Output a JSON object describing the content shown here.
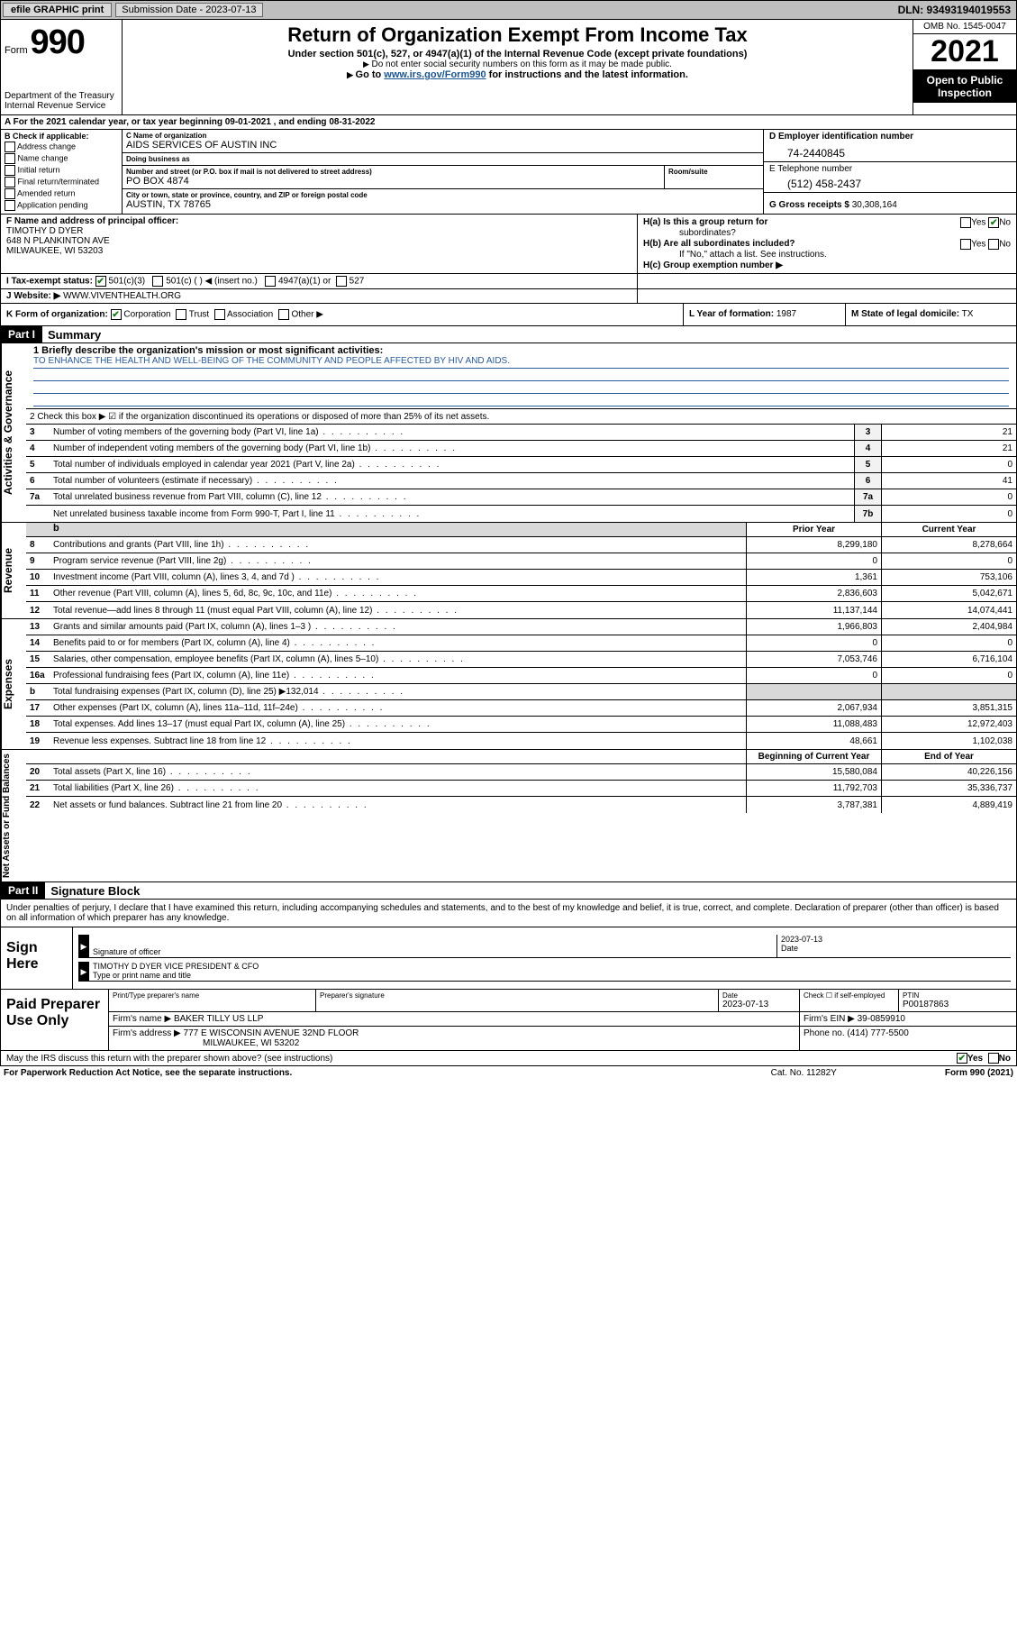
{
  "topbar": {
    "efile": "efile GRAPHIC print",
    "submission_label": "Submission Date - 2023-07-13",
    "dln": "DLN: 93493194019553"
  },
  "header": {
    "form_word": "Form",
    "form_no": "990",
    "dept": "Department of the Treasury",
    "irs": "Internal Revenue Service",
    "title": "Return of Organization Exempt From Income Tax",
    "sub1": "Under section 501(c), 527, or 4947(a)(1) of the Internal Revenue Code (except private foundations)",
    "sub2": "Do not enter social security numbers on this form as it may be made public.",
    "sub3_pre": "Go to ",
    "sub3_link": "www.irs.gov/Form990",
    "sub3_post": " for instructions and the latest information.",
    "omb": "OMB No. 1545-0047",
    "year": "2021",
    "open1": "Open to Public",
    "open2": "Inspection"
  },
  "rowA": "A  For the 2021 calendar year, or tax year beginning 09-01-2021   , and ending 08-31-2022",
  "B": {
    "label": "B Check if applicable:",
    "items": [
      "Address change",
      "Name change",
      "Initial return",
      "Final return/terminated",
      "Amended return",
      "Application pending"
    ]
  },
  "C": {
    "name_lbl": "C Name of organization",
    "name": "AIDS SERVICES OF AUSTIN INC",
    "dba_lbl": "Doing business as",
    "dba": "",
    "addr_lbl": "Number and street (or P.O. box if mail is not delivered to street address)",
    "room_lbl": "Room/suite",
    "addr": "PO BOX 4874",
    "city_lbl": "City or town, state or province, country, and ZIP or foreign postal code",
    "city": "AUSTIN, TX  78765"
  },
  "D": {
    "lbl": "D Employer identification number",
    "val": "74-2440845"
  },
  "E": {
    "lbl": "E Telephone number",
    "val": "(512) 458-2437"
  },
  "G": {
    "lbl": "G Gross receipts $",
    "val": "30,308,164"
  },
  "F": {
    "lbl": "F Name and address of principal officer:",
    "name": "TIMOTHY D DYER",
    "addr1": "648 N PLANKINTON AVE",
    "addr2": "MILWAUKEE, WI  53203"
  },
  "H": {
    "a": "H(a)  Is this a group return for",
    "a2": "subordinates?",
    "b": "H(b)  Are all subordinates included?",
    "bnote": "If \"No,\" attach a list. See instructions.",
    "c": "H(c)  Group exemption number ▶",
    "yes": "Yes",
    "no": "No"
  },
  "I": {
    "lbl": "I   Tax-exempt status:",
    "opts": [
      "501(c)(3)",
      "501(c) (  ) ◀ (insert no.)",
      "4947(a)(1) or",
      "527"
    ]
  },
  "J": {
    "lbl": "J   Website: ▶",
    "val": "WWW.VIVENTHEALTH.ORG"
  },
  "K": {
    "lbl": "K Form of organization:",
    "opts": [
      "Corporation",
      "Trust",
      "Association",
      "Other ▶"
    ]
  },
  "L": {
    "lbl": "L Year of formation:",
    "val": "1987"
  },
  "M": {
    "lbl": "M State of legal domicile:",
    "val": "TX"
  },
  "partI": {
    "hdr": "Part I",
    "title": "Summary"
  },
  "sides": {
    "gov": "Activities & Governance",
    "rev": "Revenue",
    "exp": "Expenses",
    "net": "Net Assets or Fund Balances"
  },
  "mission": {
    "q": "1   Briefly describe the organization's mission or most significant activities:",
    "text": "TO ENHANCE THE HEALTH AND WELL-BEING OF THE COMMUNITY AND PEOPLE AFFECTED BY HIV AND AIDS."
  },
  "line2": "2   Check this box ▶ ☑  if the organization discontinued its operations or disposed of more than 25% of its net assets.",
  "govlines": [
    {
      "n": "3",
      "d": "Number of voting members of the governing body (Part VI, line 1a)",
      "c": "3",
      "v": "21"
    },
    {
      "n": "4",
      "d": "Number of independent voting members of the governing body (Part VI, line 1b)",
      "c": "4",
      "v": "21"
    },
    {
      "n": "5",
      "d": "Total number of individuals employed in calendar year 2021 (Part V, line 2a)",
      "c": "5",
      "v": "0"
    },
    {
      "n": "6",
      "d": "Total number of volunteers (estimate if necessary)",
      "c": "6",
      "v": "41"
    },
    {
      "n": "7a",
      "d": "Total unrelated business revenue from Part VIII, column (C), line 12",
      "c": "7a",
      "v": "0"
    },
    {
      "n": "",
      "d": "Net unrelated business taxable income from Form 990-T, Part I, line 11",
      "c": "7b",
      "v": "0"
    }
  ],
  "colhdrs": {
    "prior": "Prior Year",
    "current": "Current Year",
    "boy": "Beginning of Current Year",
    "eoy": "End of Year"
  },
  "revlines": [
    {
      "n": "8",
      "d": "Contributions and grants (Part VIII, line 1h)",
      "p": "8,299,180",
      "c": "8,278,664"
    },
    {
      "n": "9",
      "d": "Program service revenue (Part VIII, line 2g)",
      "p": "0",
      "c": "0"
    },
    {
      "n": "10",
      "d": "Investment income (Part VIII, column (A), lines 3, 4, and 7d )",
      "p": "1,361",
      "c": "753,106"
    },
    {
      "n": "11",
      "d": "Other revenue (Part VIII, column (A), lines 5, 6d, 8c, 9c, 10c, and 11e)",
      "p": "2,836,603",
      "c": "5,042,671"
    },
    {
      "n": "12",
      "d": "Total revenue—add lines 8 through 11 (must equal Part VIII, column (A), line 12)",
      "p": "11,137,144",
      "c": "14,074,441"
    }
  ],
  "explines": [
    {
      "n": "13",
      "d": "Grants and similar amounts paid (Part IX, column (A), lines 1–3 )",
      "p": "1,966,803",
      "c": "2,404,984"
    },
    {
      "n": "14",
      "d": "Benefits paid to or for members (Part IX, column (A), line 4)",
      "p": "0",
      "c": "0"
    },
    {
      "n": "15",
      "d": "Salaries, other compensation, employee benefits (Part IX, column (A), lines 5–10)",
      "p": "7,053,746",
      "c": "6,716,104"
    },
    {
      "n": "16a",
      "d": "Professional fundraising fees (Part IX, column (A), line 11e)",
      "p": "0",
      "c": "0"
    },
    {
      "n": "b",
      "d": "Total fundraising expenses (Part IX, column (D), line 25) ▶132,014",
      "p": "",
      "c": "",
      "shade": true
    },
    {
      "n": "17",
      "d": "Other expenses (Part IX, column (A), lines 11a–11d, 11f–24e)",
      "p": "2,067,934",
      "c": "3,851,315"
    },
    {
      "n": "18",
      "d": "Total expenses. Add lines 13–17 (must equal Part IX, column (A), line 25)",
      "p": "11,088,483",
      "c": "12,972,403"
    },
    {
      "n": "19",
      "d": "Revenue less expenses. Subtract line 18 from line 12",
      "p": "48,661",
      "c": "1,102,038"
    }
  ],
  "netlines": [
    {
      "n": "20",
      "d": "Total assets (Part X, line 16)",
      "p": "15,580,084",
      "c": "40,226,156"
    },
    {
      "n": "21",
      "d": "Total liabilities (Part X, line 26)",
      "p": "11,792,703",
      "c": "35,336,737"
    },
    {
      "n": "22",
      "d": "Net assets or fund balances. Subtract line 21 from line 20",
      "p": "3,787,381",
      "c": "4,889,419"
    }
  ],
  "partII": {
    "hdr": "Part II",
    "title": "Signature Block"
  },
  "penalties": "Under penalties of perjury, I declare that I have examined this return, including accompanying schedules and statements, and to the best of my knowledge and belief, it is true, correct, and complete. Declaration of preparer (other than officer) is based on all information of which preparer has any knowledge.",
  "sign": {
    "lbl": "Sign Here",
    "sig_lbl": "Signature of officer",
    "date_lbl": "Date",
    "date": "2023-07-13",
    "name": "TIMOTHY D DYER  VICE PRESIDENT & CFO",
    "name_lbl": "Type or print name and title"
  },
  "prep": {
    "lbl": "Paid Preparer Use Only",
    "h_name": "Print/Type preparer's name",
    "h_sig": "Preparer's signature",
    "h_date": "Date",
    "date": "2023-07-13",
    "h_check": "Check ☐ if self-employed",
    "h_ptin": "PTIN",
    "ptin": "P00187863",
    "firm_lbl": "Firm's name    ▶",
    "firm": "BAKER TILLY US LLP",
    "ein_lbl": "Firm's EIN ▶",
    "ein": "39-0859910",
    "addr_lbl": "Firm's address ▶",
    "addr1": "777 E WISCONSIN AVENUE 32ND FLOOR",
    "addr2": "MILWAUKEE, WI  53202",
    "phone_lbl": "Phone no.",
    "phone": "(414) 777-5500"
  },
  "discuss": {
    "q": "May the IRS discuss this return with the preparer shown above? (see instructions)",
    "yes": "Yes",
    "no": "No"
  },
  "footer": {
    "f1": "For Paperwork Reduction Act Notice, see the separate instructions.",
    "f2": "Cat. No. 11282Y",
    "f3": "Form 990 (2021)"
  }
}
